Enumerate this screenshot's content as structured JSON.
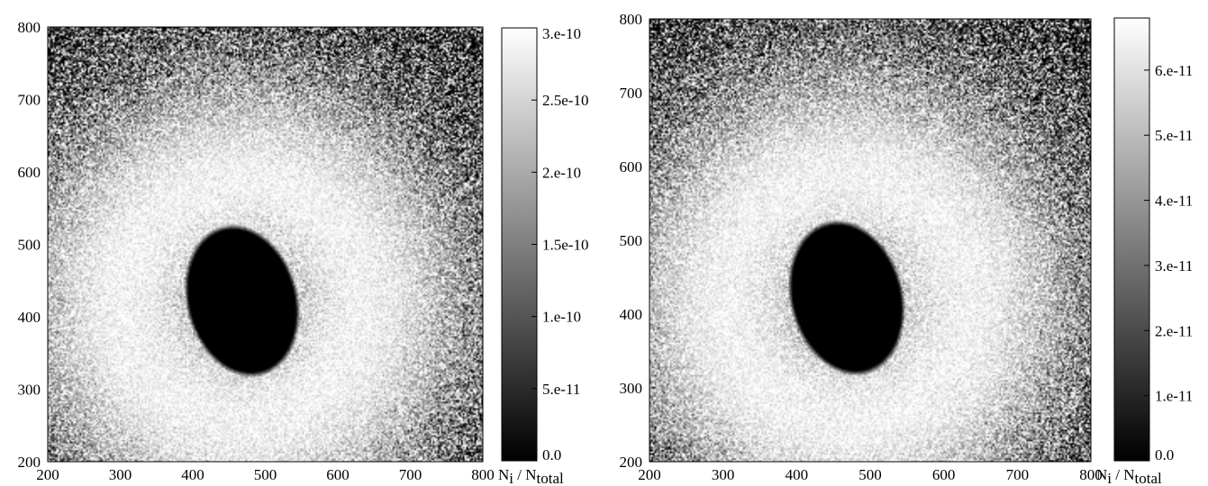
{
  "chart_data": [
    {
      "type": "heatmap",
      "colormap": "grayscale",
      "x_ticks": [
        "200",
        "300",
        "400",
        "500",
        "600",
        "700",
        "800"
      ],
      "y_ticks": [
        "200",
        "300",
        "400",
        "500",
        "600",
        "700",
        "800"
      ],
      "xlim": [
        200,
        800
      ],
      "ylim": [
        200,
        800
      ],
      "colorbar": {
        "label_main": "N",
        "label_sub": "i",
        "label_sep": " / N",
        "label_sub2": "total",
        "range": [
          0,
          3e-10
        ],
        "ticks": [
          {
            "value": 0,
            "label": "0.0"
          },
          {
            "value": 5e-11,
            "label": "5.e-11"
          },
          {
            "value": 1e-10,
            "label": "1.e-10"
          },
          {
            "value": 1.5e-10,
            "label": "1.5e-10"
          },
          {
            "value": 2e-10,
            "label": "2.e-10"
          },
          {
            "value": 2.5e-10,
            "label": "2.5e-10"
          },
          {
            "value": 3e-10,
            "label": "3.e-10"
          }
        ]
      },
      "hole": {
        "center": [
          468,
          422
        ],
        "radius_x": 72,
        "radius_y": 100,
        "tilt_deg": 15
      },
      "glow": {
        "center": [
          470,
          420
        ],
        "peak_radius": 165,
        "spread": 260
      }
    },
    {
      "type": "heatmap",
      "colormap": "grayscale",
      "x_ticks": [
        "200",
        "300",
        "400",
        "500",
        "600",
        "700",
        "800"
      ],
      "y_ticks": [
        "200",
        "300",
        "400",
        "500",
        "600",
        "700",
        "800"
      ],
      "xlim": [
        200,
        800
      ],
      "ylim": [
        200,
        800
      ],
      "colorbar": {
        "label_main": "N",
        "label_sub": "i",
        "label_sep": " / N",
        "label_sub2": "total",
        "range": [
          0,
          6.8e-11
        ],
        "ticks": [
          {
            "value": 0,
            "label": "0.0"
          },
          {
            "value": 1e-11,
            "label": "1.e-11"
          },
          {
            "value": 2e-11,
            "label": "2.e-11"
          },
          {
            "value": 3e-11,
            "label": "3.e-11"
          },
          {
            "value": 4e-11,
            "label": "4.e-11"
          },
          {
            "value": 5e-11,
            "label": "5.e-11"
          },
          {
            "value": 6e-11,
            "label": "6.e-11"
          }
        ]
      },
      "hole": {
        "center": [
          468,
          422
        ],
        "radius_x": 72,
        "radius_y": 100,
        "tilt_deg": 15
      },
      "glow": {
        "center": [
          470,
          420
        ],
        "peak_radius": 165,
        "spread": 260
      }
    }
  ]
}
